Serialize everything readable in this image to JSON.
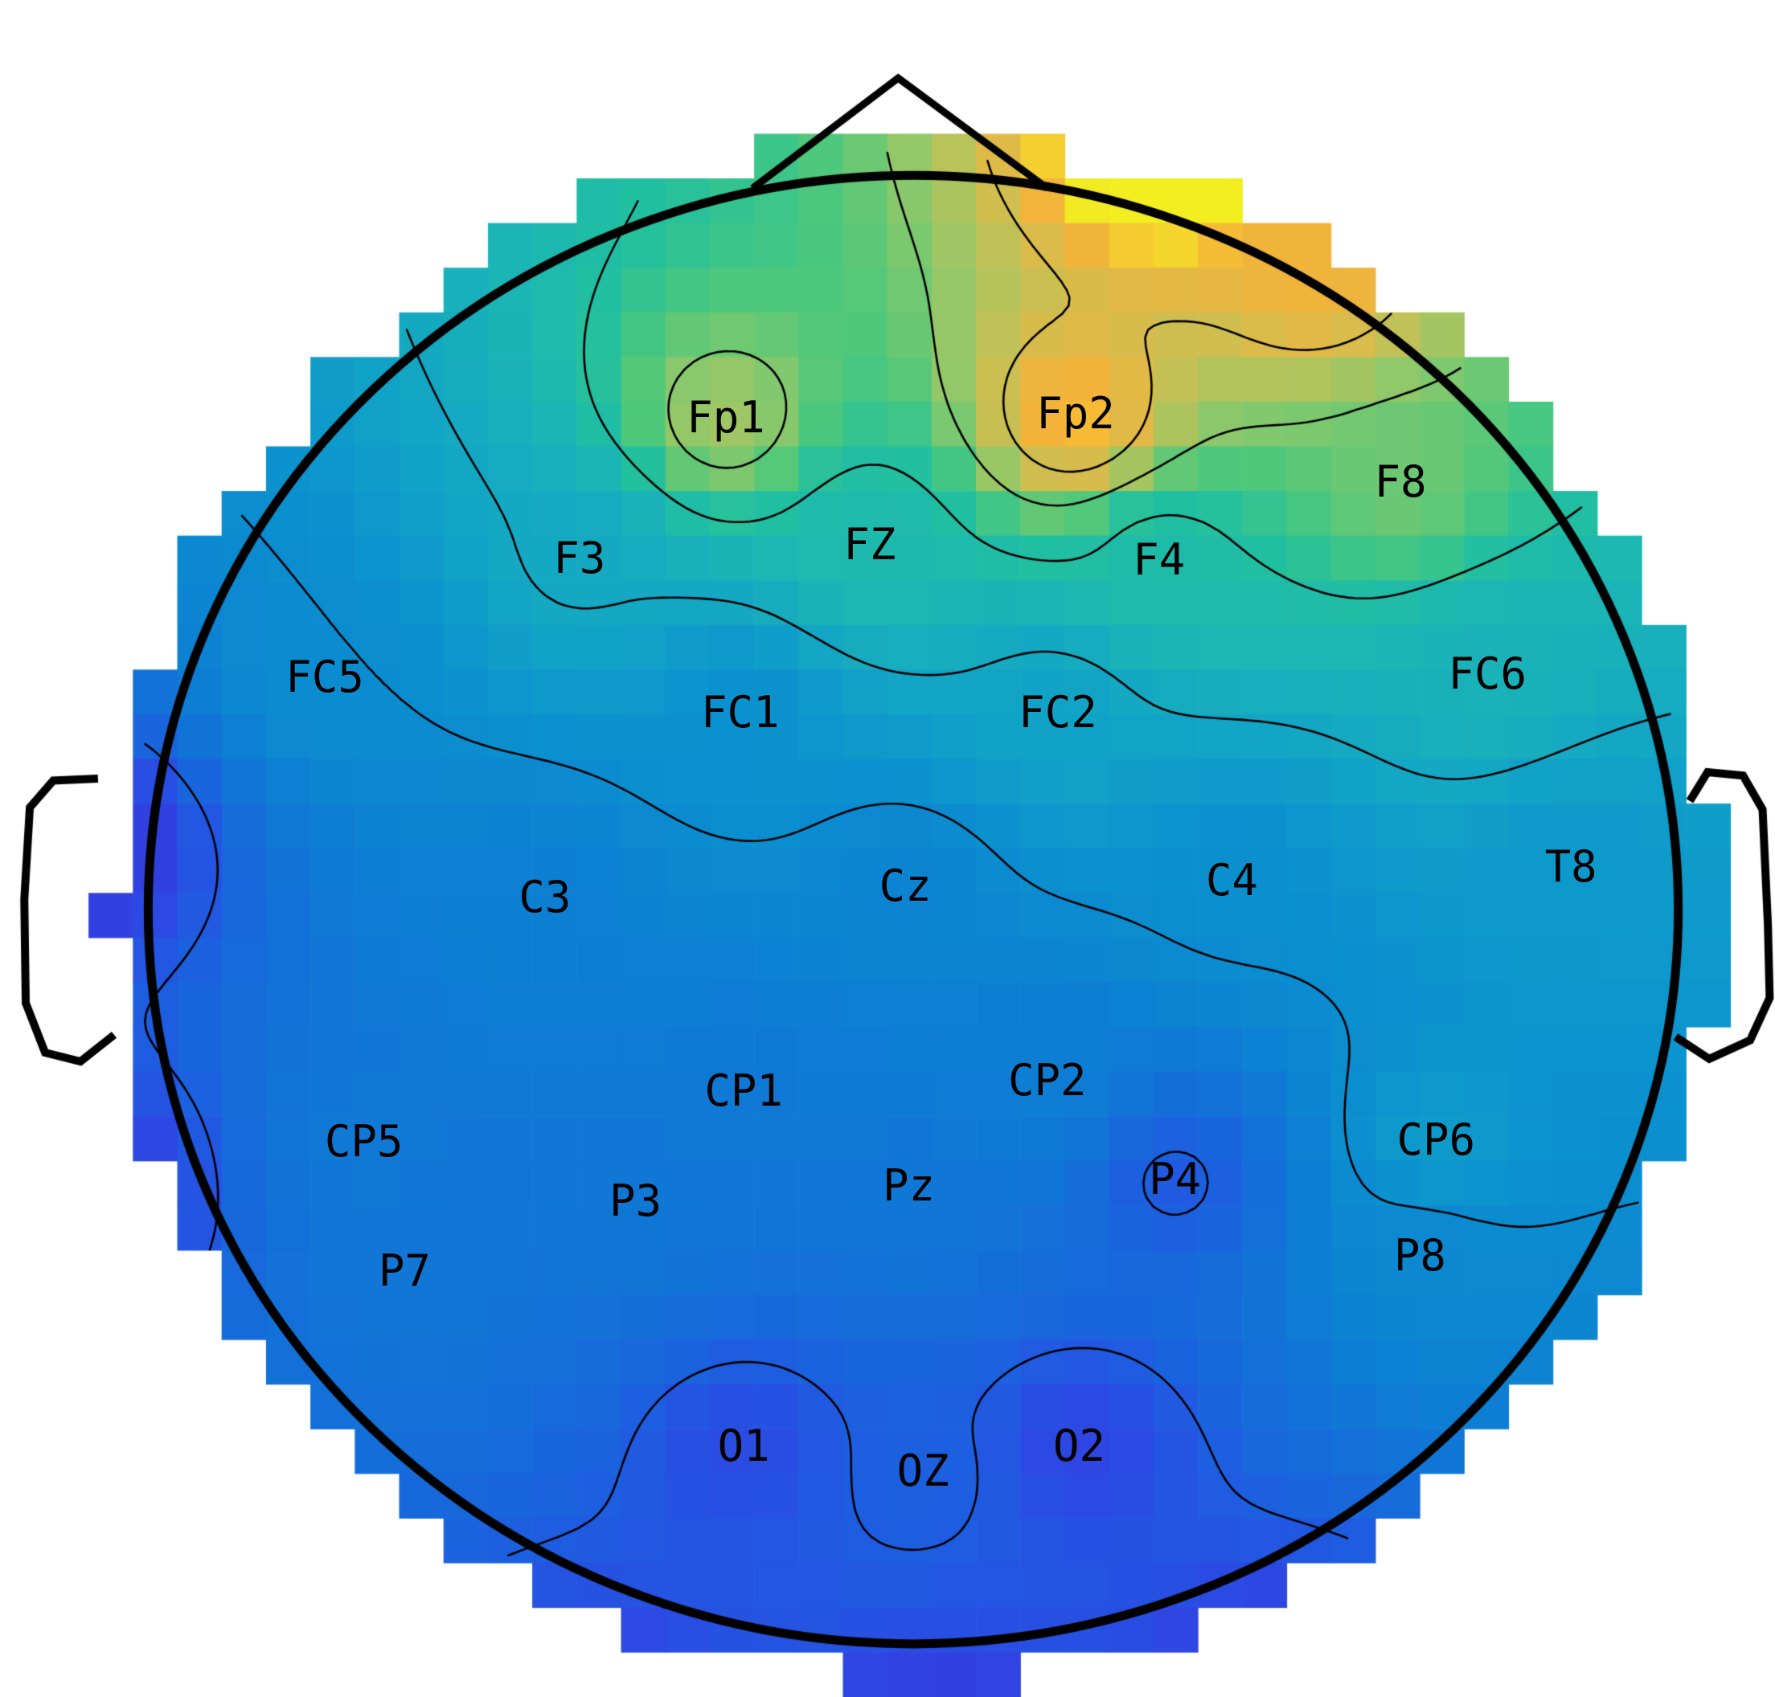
{
  "page": {
    "background": "#ffffff"
  },
  "figure": {
    "kind": "eeg-scalp-topography",
    "outline_color": "#000000"
  },
  "chart_data": {
    "type": "heatmap",
    "subtype": "eeg-topomap-contour",
    "title": "",
    "legend": "none",
    "colormap": {
      "name": "parula-like",
      "stops": [
        [
          0.0,
          "#3d2ed6"
        ],
        [
          0.1,
          "#2c49e4"
        ],
        [
          0.18,
          "#1c60e0"
        ],
        [
          0.26,
          "#1370d8"
        ],
        [
          0.34,
          "#0d7fd3"
        ],
        [
          0.42,
          "#0b91cf"
        ],
        [
          0.5,
          "#12a5c6"
        ],
        [
          0.58,
          "#1cb6b4"
        ],
        [
          0.64,
          "#22c09f"
        ],
        [
          0.7,
          "#4ec87b"
        ],
        [
          0.76,
          "#8fc86a"
        ],
        [
          0.82,
          "#bcc258"
        ],
        [
          0.88,
          "#e0ba47"
        ],
        [
          0.93,
          "#f6b238"
        ],
        [
          0.97,
          "#f4d92b"
        ],
        [
          1.0,
          "#f2ee20"
        ]
      ]
    },
    "value_range": [
      -2.6,
      7.4
    ],
    "contour_levels": [
      -0.9,
      1.4,
      2.55,
      3.7,
      4.85,
      6.0
    ],
    "electrodes": [
      {
        "label": "Fp1",
        "x": 0.409,
        "y": 0.247,
        "value": 5.2
      },
      {
        "label": "Fp2",
        "x": 0.606,
        "y": 0.245,
        "value": 6.8
      },
      {
        "label": "F8",
        "x": 0.789,
        "y": 0.285,
        "value": 4.7
      },
      {
        "label": "F3",
        "x": 0.3265,
        "y": 0.33,
        "value": 2.6
      },
      {
        "label": "FZ",
        "x": 0.49,
        "y": 0.322,
        "value": 3.4
      },
      {
        "label": "F4",
        "x": 0.653,
        "y": 0.331,
        "value": 3.5
      },
      {
        "label": "FC5",
        "x": 0.183,
        "y": 0.4,
        "value": 1.4
      },
      {
        "label": "FC1",
        "x": 0.417,
        "y": 0.421,
        "value": 1.6
      },
      {
        "label": "FC2",
        "x": 0.596,
        "y": 0.421,
        "value": 2.3
      },
      {
        "label": "FC6",
        "x": 0.838,
        "y": 0.398,
        "value": 3.0
      },
      {
        "label": "C3",
        "x": 0.307,
        "y": 0.53,
        "value": 0.8
      },
      {
        "label": "Cz",
        "x": 0.51,
        "y": 0.523,
        "value": 1.0
      },
      {
        "label": "C4",
        "x": 0.694,
        "y": 0.52,
        "value": 1.5
      },
      {
        "label": "T8",
        "x": 0.885,
        "y": 0.512,
        "value": 1.9
      },
      {
        "label": "CP1",
        "x": 0.419,
        "y": 0.644,
        "value": 0.5
      },
      {
        "label": "CP2",
        "x": 0.59,
        "y": 0.638,
        "value": 0.7
      },
      {
        "label": "CP5",
        "x": 0.205,
        "y": 0.674,
        "value": 0.45
      },
      {
        "label": "CP6",
        "x": 0.809,
        "y": 0.673,
        "value": 2.0
      },
      {
        "label": "P3",
        "x": 0.358,
        "y": 0.709,
        "value": 0.35
      },
      {
        "label": "Pz",
        "x": 0.512,
        "y": 0.7,
        "value": 0.35
      },
      {
        "label": "P4",
        "x": 0.662,
        "y": 0.696,
        "value": -1.0
      },
      {
        "label": "P7",
        "x": 0.228,
        "y": 0.75,
        "value": 0.3
      },
      {
        "label": "P8",
        "x": 0.8,
        "y": 0.741,
        "value": 1.2
      },
      {
        "label": "O1",
        "x": 0.419,
        "y": 0.853,
        "value": -1.5
      },
      {
        "label": "OZ",
        "x": 0.52,
        "y": 0.868,
        "value": -0.8
      },
      {
        "label": "O2",
        "x": 0.608,
        "y": 0.853,
        "value": -1.7
      }
    ],
    "field_anchors": [
      {
        "x": 0.66,
        "y": 0.085,
        "value": 8.6
      },
      {
        "x": 0.74,
        "y": 0.16,
        "value": 6.6
      },
      {
        "x": 0.055,
        "y": 0.5,
        "value": -2.2
      },
      {
        "x": 0.062,
        "y": 0.7,
        "value": -2.0
      },
      {
        "x": 0.33,
        "y": 1.02,
        "value": -2.2
      },
      {
        "x": 0.53,
        "y": 1.04,
        "value": -2.4
      },
      {
        "x": 0.72,
        "y": 1.0,
        "value": -2.4
      }
    ],
    "head": {
      "ellipse": {
        "cx": 0.5145,
        "cy": 0.536,
        "rx": 0.431,
        "ry": 0.4327
      },
      "nose": [
        [
          0.424,
          0.111
        ],
        [
          0.506,
          0.046
        ],
        [
          0.59,
          0.111
        ]
      ],
      "ear_left": [
        [
          0.0552,
          0.4588
        ],
        [
          0.03,
          0.46
        ],
        [
          0.0168,
          0.4758
        ],
        [
          0.0137,
          0.53
        ],
        [
          0.0145,
          0.591
        ],
        [
          0.0254,
          0.6203
        ],
        [
          0.0453,
          0.6255
        ],
        [
          0.0643,
          0.6098
        ]
      ],
      "ear_right": [
        [
          0.952,
          0.472
        ],
        [
          0.962,
          0.455
        ],
        [
          0.982,
          0.457
        ],
        [
          0.993,
          0.477
        ],
        [
          0.996,
          0.545
        ],
        [
          0.997,
          0.588
        ],
        [
          0.986,
          0.613
        ],
        [
          0.963,
          0.624
        ],
        [
          0.944,
          0.611
        ]
      ]
    }
  }
}
